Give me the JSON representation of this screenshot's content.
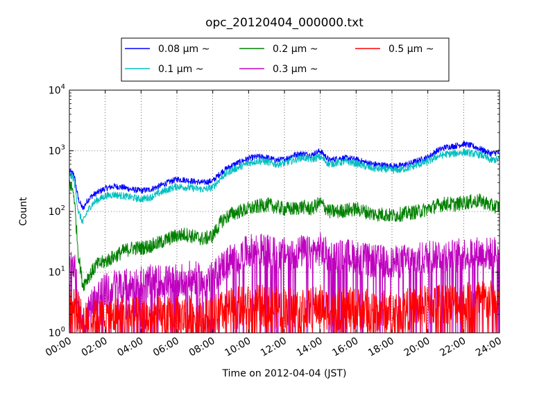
{
  "chart_data": {
    "type": "line",
    "title": "opc_20120404_000000.txt",
    "xlabel": "Time on 2012-04-04 (JST)",
    "ylabel": "Count",
    "yscale": "log",
    "xlim": [
      0,
      24
    ],
    "ylim": [
      1,
      10000
    ],
    "grid": true,
    "legend_position": "top-center",
    "x_ticks": [
      {
        "value": 0,
        "label": "00:00"
      },
      {
        "value": 2,
        "label": "02:00"
      },
      {
        "value": 4,
        "label": "04:00"
      },
      {
        "value": 6,
        "label": "06:00"
      },
      {
        "value": 8,
        "label": "08:00"
      },
      {
        "value": 10,
        "label": "10:00"
      },
      {
        "value": 12,
        "label": "12:00"
      },
      {
        "value": 14,
        "label": "14:00"
      },
      {
        "value": 16,
        "label": "16:00"
      },
      {
        "value": 18,
        "label": "18:00"
      },
      {
        "value": 20,
        "label": "20:00"
      },
      {
        "value": 22,
        "label": "22:00"
      },
      {
        "value": 24,
        "label": "24:00"
      }
    ],
    "y_ticks": [
      {
        "value": 1,
        "base": "10",
        "exp": "0"
      },
      {
        "value": 10,
        "base": "10",
        "exp": "1"
      },
      {
        "value": 100,
        "base": "10",
        "exp": "2"
      },
      {
        "value": 1000,
        "base": "10",
        "exp": "3"
      },
      {
        "value": 10000,
        "base": "10",
        "exp": "4"
      }
    ],
    "x": [
      0,
      0.25,
      0.5,
      0.75,
      1,
      1.25,
      1.5,
      2,
      2.5,
      3,
      3.5,
      4,
      4.5,
      5,
      5.5,
      6,
      6.5,
      7,
      7.5,
      8,
      8.5,
      9,
      9.5,
      10,
      10.5,
      11,
      11.5,
      12,
      12.5,
      13,
      13.5,
      14,
      14.5,
      15,
      15.5,
      16,
      16.5,
      17,
      17.5,
      18,
      18.5,
      19,
      19.5,
      20,
      20.5,
      21,
      21.5,
      22,
      22.5,
      23,
      23.5,
      24
    ],
    "series": [
      {
        "name": "0.08 μm ~",
        "color": "#0000ff",
        "values": [
          450,
          420,
          160,
          110,
          150,
          180,
          200,
          240,
          260,
          250,
          230,
          220,
          230,
          260,
          300,
          340,
          330,
          310,
          300,
          320,
          450,
          560,
          650,
          750,
          800,
          780,
          700,
          720,
          850,
          900,
          850,
          1000,
          700,
          750,
          760,
          720,
          650,
          600,
          580,
          560,
          570,
          620,
          700,
          780,
          1000,
          1150,
          1200,
          1300,
          1200,
          1050,
          900,
          950
        ]
      },
      {
        "name": "0.1 μm ~",
        "color": "#00bfbf",
        "values": [
          400,
          350,
          100,
          65,
          100,
          130,
          150,
          180,
          190,
          180,
          170,
          160,
          170,
          200,
          230,
          260,
          250,
          240,
          230,
          250,
          370,
          470,
          540,
          630,
          680,
          660,
          600,
          620,
          700,
          780,
          720,
          800,
          600,
          640,
          660,
          620,
          550,
          510,
          500,
          480,
          490,
          530,
          600,
          660,
          800,
          880,
          900,
          950,
          900,
          850,
          700,
          720
        ]
      },
      {
        "name": "0.2 μm ~",
        "color": "#008000",
        "values": [
          300,
          200,
          20,
          6,
          8,
          10,
          13,
          15,
          18,
          22,
          25,
          25,
          27,
          30,
          35,
          40,
          42,
          38,
          35,
          40,
          70,
          90,
          100,
          110,
          120,
          130,
          120,
          110,
          110,
          120,
          110,
          140,
          100,
          100,
          105,
          110,
          100,
          90,
          90,
          85,
          90,
          95,
          100,
          110,
          125,
          135,
          130,
          140,
          145,
          150,
          125,
          120
        ]
      },
      {
        "name": "0.3 μm ~",
        "color": "#bf00bf",
        "values": [
          18,
          15,
          3,
          1.5,
          2,
          3,
          4,
          5,
          6,
          6,
          6,
          7,
          7,
          7,
          7,
          7,
          8,
          8,
          7,
          8,
          12,
          16,
          18,
          22,
          24,
          22,
          20,
          20,
          20,
          22,
          20,
          24,
          18,
          18,
          19,
          18,
          16,
          15,
          15,
          14,
          15,
          16,
          16,
          18,
          20,
          20,
          18,
          20,
          21,
          20,
          20,
          22
        ]
      },
      {
        "name": "0.5 μm ~",
        "color": "#ff0000",
        "values": [
          3,
          3,
          2,
          1.5,
          1.5,
          1.6,
          1.6,
          1.8,
          1.8,
          1.8,
          1.8,
          1.8,
          1.8,
          1.8,
          1.8,
          1.8,
          1.9,
          1.9,
          1.8,
          1.9,
          2.2,
          2.5,
          2.6,
          2.7,
          2.8,
          2.7,
          2.6,
          2.6,
          2.6,
          2.7,
          2.6,
          2.8,
          2.4,
          2.4,
          2.5,
          2.5,
          2.4,
          2.3,
          2.3,
          2.3,
          2.4,
          2.5,
          2.6,
          2.8,
          3,
          3.2,
          3,
          3.2,
          3.3,
          3.4,
          3.3,
          3.5
        ]
      }
    ]
  }
}
